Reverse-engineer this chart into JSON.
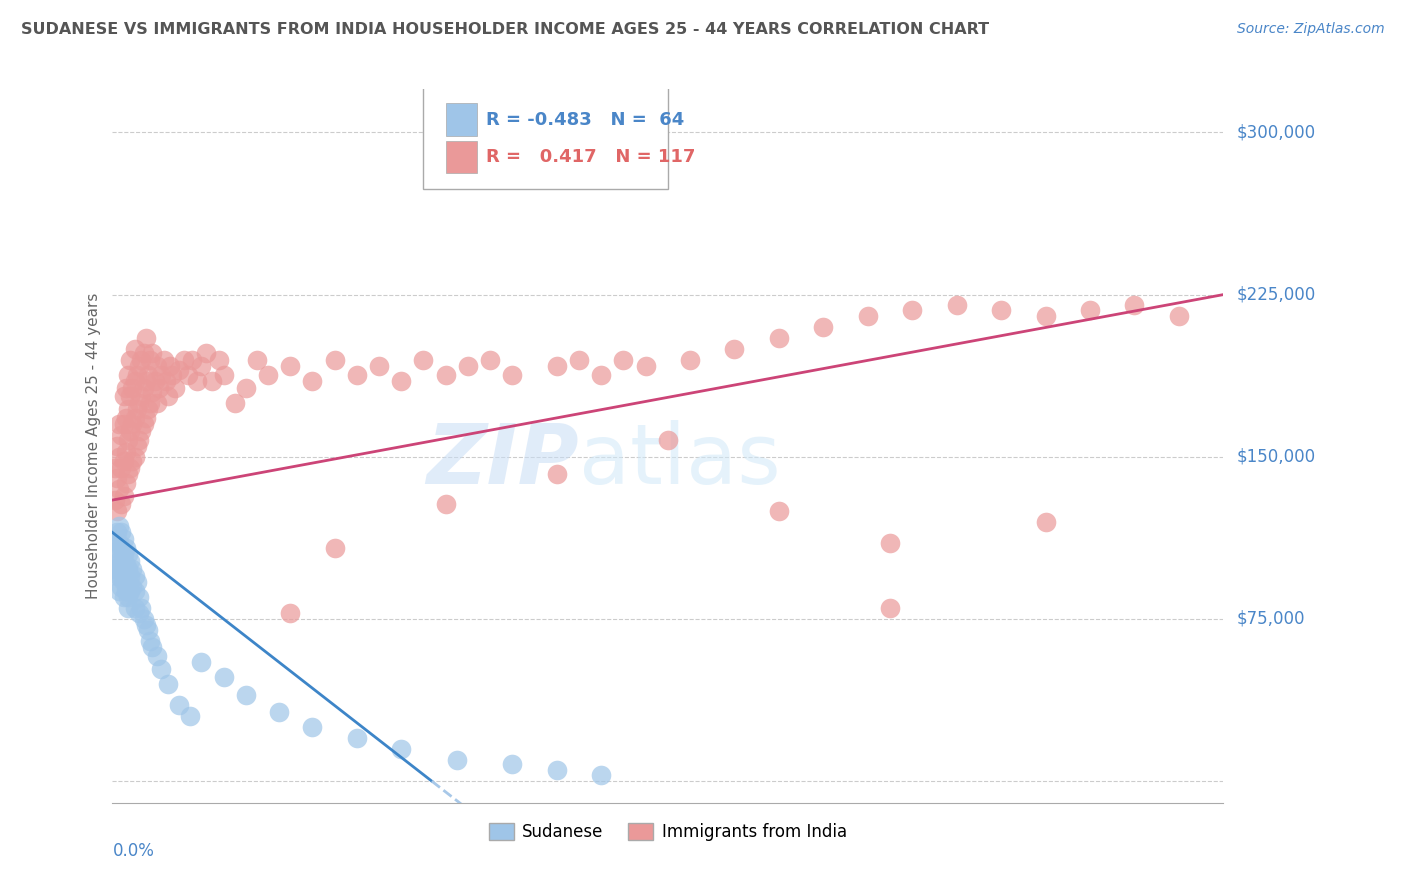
{
  "title": "SUDANESE VS IMMIGRANTS FROM INDIA HOUSEHOLDER INCOME AGES 25 - 44 YEARS CORRELATION CHART",
  "source": "Source: ZipAtlas.com",
  "ylabel": "Householder Income Ages 25 - 44 years",
  "yticks": [
    0,
    75000,
    150000,
    225000,
    300000
  ],
  "ytick_labels": [
    "",
    "$75,000",
    "$150,000",
    "$225,000",
    "$300,000"
  ],
  "xrange": [
    0.0,
    0.5
  ],
  "yrange": [
    -10000,
    320000
  ],
  "legend1_r": "-0.483",
  "legend1_n": "64",
  "legend2_r": "0.417",
  "legend2_n": "117",
  "color_blue": "#9fc5e8",
  "color_pink": "#ea9999",
  "color_blue_line": "#3d85c8",
  "color_pink_line": "#cc4477",
  "color_blue_text": "#4a86c8",
  "watermark_zip": "ZIP",
  "watermark_atlas": "atlas",
  "sudanese_x": [
    0.001,
    0.001,
    0.001,
    0.002,
    0.002,
    0.002,
    0.002,
    0.003,
    0.003,
    0.003,
    0.003,
    0.003,
    0.004,
    0.004,
    0.004,
    0.004,
    0.004,
    0.005,
    0.005,
    0.005,
    0.005,
    0.005,
    0.006,
    0.006,
    0.006,
    0.006,
    0.007,
    0.007,
    0.007,
    0.007,
    0.007,
    0.008,
    0.008,
    0.008,
    0.009,
    0.009,
    0.01,
    0.01,
    0.01,
    0.011,
    0.012,
    0.012,
    0.013,
    0.014,
    0.015,
    0.016,
    0.017,
    0.018,
    0.02,
    0.022,
    0.025,
    0.03,
    0.035,
    0.04,
    0.05,
    0.06,
    0.075,
    0.09,
    0.11,
    0.13,
    0.155,
    0.18,
    0.2,
    0.22
  ],
  "sudanese_y": [
    105000,
    112000,
    98000,
    115000,
    108000,
    100000,
    95000,
    118000,
    110000,
    102000,
    95000,
    88000,
    115000,
    108000,
    100000,
    95000,
    90000,
    112000,
    105000,
    98000,
    92000,
    85000,
    108000,
    100000,
    95000,
    88000,
    105000,
    98000,
    92000,
    85000,
    80000,
    102000,
    95000,
    88000,
    98000,
    90000,
    95000,
    88000,
    80000,
    92000,
    85000,
    78000,
    80000,
    75000,
    72000,
    70000,
    65000,
    62000,
    58000,
    52000,
    45000,
    35000,
    30000,
    55000,
    48000,
    40000,
    32000,
    25000,
    20000,
    15000,
    10000,
    8000,
    5000,
    3000
  ],
  "india_x": [
    0.001,
    0.001,
    0.002,
    0.002,
    0.002,
    0.003,
    0.003,
    0.003,
    0.004,
    0.004,
    0.004,
    0.005,
    0.005,
    0.005,
    0.005,
    0.006,
    0.006,
    0.006,
    0.006,
    0.007,
    0.007,
    0.007,
    0.007,
    0.008,
    0.008,
    0.008,
    0.008,
    0.009,
    0.009,
    0.009,
    0.01,
    0.01,
    0.01,
    0.01,
    0.011,
    0.011,
    0.011,
    0.012,
    0.012,
    0.012,
    0.013,
    0.013,
    0.013,
    0.014,
    0.014,
    0.014,
    0.015,
    0.015,
    0.015,
    0.016,
    0.016,
    0.017,
    0.017,
    0.018,
    0.018,
    0.019,
    0.02,
    0.02,
    0.021,
    0.022,
    0.023,
    0.024,
    0.025,
    0.026,
    0.027,
    0.028,
    0.03,
    0.032,
    0.034,
    0.036,
    0.038,
    0.04,
    0.042,
    0.045,
    0.048,
    0.05,
    0.055,
    0.06,
    0.065,
    0.07,
    0.08,
    0.09,
    0.1,
    0.11,
    0.12,
    0.13,
    0.14,
    0.15,
    0.16,
    0.17,
    0.18,
    0.2,
    0.21,
    0.22,
    0.23,
    0.24,
    0.26,
    0.28,
    0.3,
    0.32,
    0.34,
    0.36,
    0.38,
    0.4,
    0.42,
    0.44,
    0.46,
    0.48,
    0.08,
    0.35,
    0.42,
    0.1,
    0.15,
    0.2,
    0.25,
    0.3,
    0.35
  ],
  "india_y": [
    130000,
    145000,
    125000,
    140000,
    155000,
    135000,
    150000,
    165000,
    128000,
    145000,
    160000,
    132000,
    148000,
    165000,
    178000,
    138000,
    152000,
    168000,
    182000,
    142000,
    158000,
    172000,
    188000,
    145000,
    162000,
    178000,
    195000,
    148000,
    165000,
    182000,
    150000,
    168000,
    185000,
    200000,
    155000,
    172000,
    188000,
    158000,
    175000,
    192000,
    162000,
    178000,
    195000,
    165000,
    182000,
    198000,
    168000,
    185000,
    205000,
    172000,
    188000,
    175000,
    195000,
    180000,
    198000,
    185000,
    175000,
    192000,
    182000,
    188000,
    195000,
    185000,
    178000,
    192000,
    188000,
    182000,
    190000,
    195000,
    188000,
    195000,
    185000,
    192000,
    198000,
    185000,
    195000,
    188000,
    175000,
    182000,
    195000,
    188000,
    192000,
    185000,
    195000,
    188000,
    192000,
    185000,
    195000,
    188000,
    192000,
    195000,
    188000,
    192000,
    195000,
    188000,
    195000,
    192000,
    195000,
    200000,
    205000,
    210000,
    215000,
    218000,
    220000,
    218000,
    215000,
    218000,
    220000,
    215000,
    78000,
    80000,
    120000,
    108000,
    128000,
    142000,
    158000,
    125000,
    110000
  ]
}
